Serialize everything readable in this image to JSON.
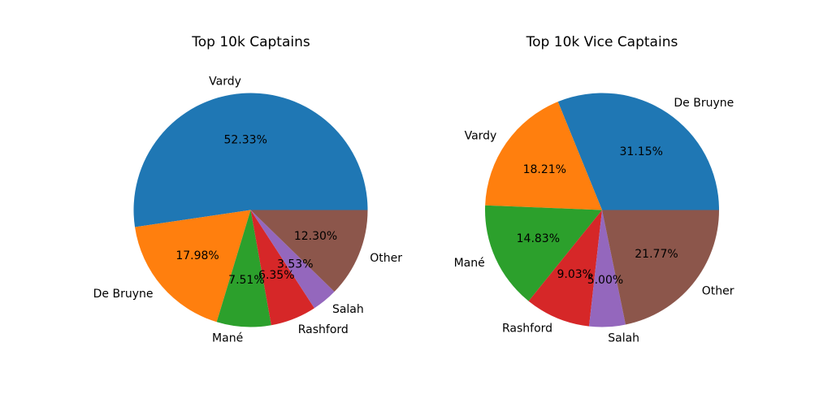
{
  "chart_data": [
    {
      "type": "pie",
      "title": "Top 10k Captains",
      "categories": [
        "Vardy",
        "De Bruyne",
        "Mané",
        "Rashford",
        "Salah",
        "Other"
      ],
      "values": [
        52.33,
        17.98,
        7.51,
        6.35,
        3.53,
        12.3
      ],
      "value_labels": [
        "52.33%",
        "17.98%",
        "7.51%",
        "6.35%",
        "3.53%",
        "12.30%"
      ],
      "colors": [
        "#1f77b4",
        "#ff7f0e",
        "#2ca02c",
        "#d62728",
        "#9467bd",
        "#8c564b"
      ]
    },
    {
      "type": "pie",
      "title": "Top 10k Vice Captains",
      "categories": [
        "De Bruyne",
        "Vardy",
        "Mané",
        "Rashford",
        "Salah",
        "Other"
      ],
      "values": [
        31.15,
        18.21,
        14.83,
        9.03,
        5.0,
        21.77
      ],
      "value_labels": [
        "31.15%",
        "18.21%",
        "14.83%",
        "9.03%",
        "5.00%",
        "21.77%"
      ],
      "colors": [
        "#1f77b4",
        "#ff7f0e",
        "#2ca02c",
        "#d62728",
        "#9467bd",
        "#8c564b"
      ]
    }
  ]
}
